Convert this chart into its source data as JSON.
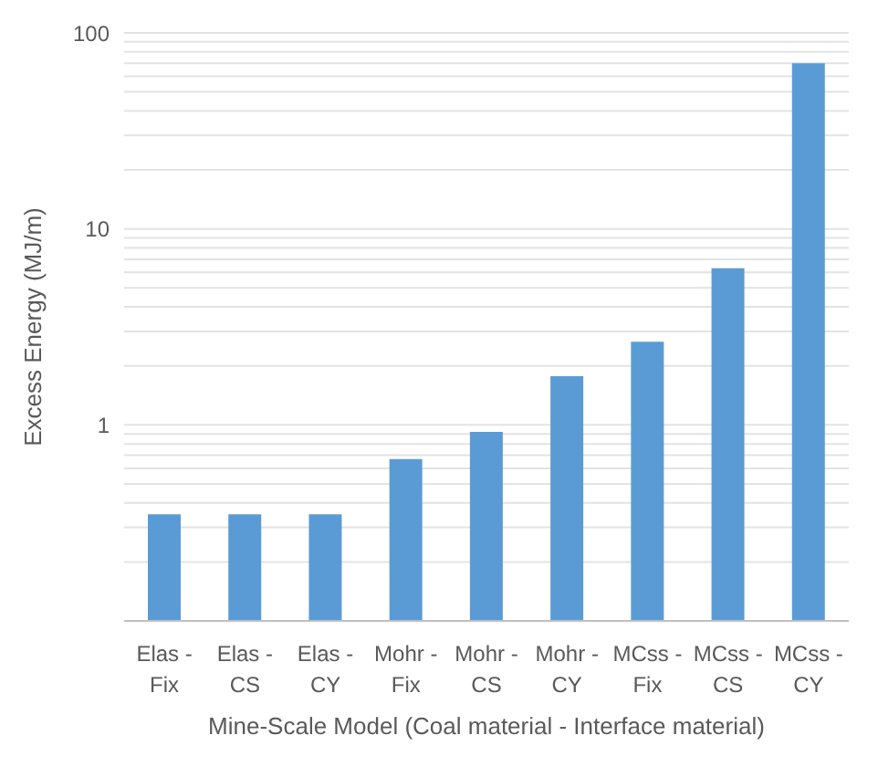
{
  "chart_data": {
    "type": "bar",
    "xlabel": "Mine-Scale Model (Coal material - Interface material)",
    "ylabel": "Excess Energy (MJ/m)",
    "categories": [
      "Elas - Fix",
      "Elas - CS",
      "Elas - CY",
      "Mohr - Fix",
      "Mohr - CS",
      "Mohr - CY",
      "MCss - Fix",
      "MCss - CS",
      "MCss - CY"
    ],
    "values": [
      0.35,
      0.35,
      0.35,
      0.67,
      0.92,
      1.77,
      2.66,
      6.3,
      70
    ],
    "color": "#5b9bd5",
    "log": true,
    "ylim": [
      0.1,
      100
    ],
    "yticks": [
      {
        "value": 0.1,
        "label": null
      },
      {
        "value": 0.2,
        "label": null
      },
      {
        "value": 0.3,
        "label": null
      },
      {
        "value": 0.4,
        "label": null
      },
      {
        "value": 0.5,
        "label": null
      },
      {
        "value": 0.6,
        "label": null
      },
      {
        "value": 0.7,
        "label": null
      },
      {
        "value": 0.8,
        "label": null
      },
      {
        "value": 0.9,
        "label": null
      },
      1,
      {
        "value": 2,
        "label": null
      },
      {
        "value": 3,
        "label": null
      },
      {
        "value": 4,
        "label": null
      },
      {
        "value": 5,
        "label": null
      },
      {
        "value": 6,
        "label": null
      },
      {
        "value": 7,
        "label": null
      },
      {
        "value": 8,
        "label": null
      },
      {
        "value": 9,
        "label": null
      },
      10,
      {
        "value": 20,
        "label": null
      },
      {
        "value": 30,
        "label": null
      },
      {
        "value": 40,
        "label": null
      },
      {
        "value": 50,
        "label": null
      },
      {
        "value": 60,
        "label": null
      },
      {
        "value": 70,
        "label": null
      },
      {
        "value": 80,
        "label": null
      },
      {
        "value": 90,
        "label": null
      },
      100
    ],
    "grid": "y"
  }
}
